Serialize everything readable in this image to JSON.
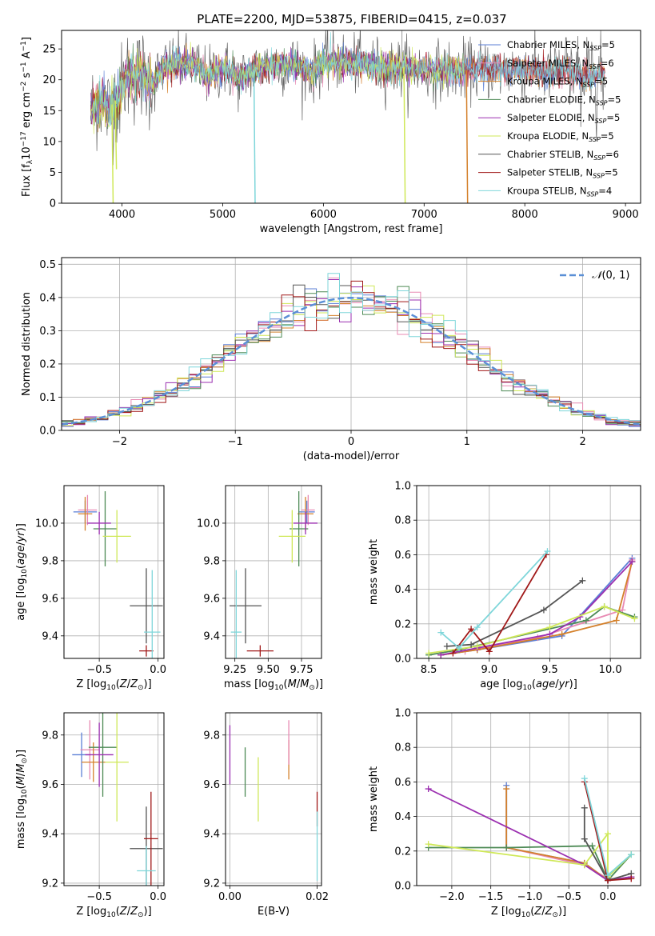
{
  "figure": {
    "title": "PLATE=2200, MJD=53875, FIBERID=0415, z=0.037"
  },
  "colors": {
    "Chabrier MILES": "#5b7fd6",
    "Salpeter MILES": "#e88ab3",
    "Kroupa MILES": "#d4802a",
    "Chabrier ELODIE": "#4d8a55",
    "Salpeter ELODIE": "#9b2fb0",
    "Kroupa ELODIE": "#cfe858",
    "Chabrier STELIB": "#555555",
    "Salpeter STELIB": "#a01818",
    "Kroupa STELIB": "#7fd6da"
  },
  "chart_data": [
    {
      "id": "spectrum",
      "type": "line",
      "title": "PLATE=2200, MJD=53875, FIBERID=0415, z=0.037",
      "xlabel": "wavelength [Angstrom, rest frame]",
      "ylabel": "Flux [f_λ 10^-17 erg cm^-2 s^-1 A^-1]",
      "xlim": [
        3400,
        9150
      ],
      "ylim": [
        0,
        28
      ],
      "xticks": [
        4000,
        5000,
        6000,
        7000,
        8000,
        9000
      ],
      "yticks": [
        0,
        5,
        10,
        15,
        20,
        25
      ],
      "legend_position": "upper right",
      "series": [
        {
          "name": "Chabrier MILES",
          "nssp": "5"
        },
        {
          "name": "Salpeter MILES",
          "nssp": "6"
        },
        {
          "name": "Kroupa MILES",
          "nssp": "5"
        },
        {
          "name": "Chabrier ELODIE",
          "nssp": "5"
        },
        {
          "name": "Salpeter ELODIE",
          "nssp": "5"
        },
        {
          "name": "Kroupa ELODIE",
          "nssp": "5"
        },
        {
          "name": "Chabrier STELIB",
          "nssp": "6"
        },
        {
          "name": "Salpeter STELIB",
          "nssp": "5"
        },
        {
          "name": "Kroupa STELIB",
          "nssp": "4"
        }
      ],
      "continuum": [
        [
          3680,
          14
        ],
        [
          3720,
          16
        ],
        [
          3800,
          17
        ],
        [
          3860,
          15
        ],
        [
          3900,
          16
        ],
        [
          3950,
          17
        ],
        [
          3990,
          18
        ],
        [
          4050,
          21
        ],
        [
          4100,
          20
        ],
        [
          4200,
          21
        ],
        [
          4300,
          19
        ],
        [
          4400,
          22
        ],
        [
          4500,
          22.5
        ],
        [
          4700,
          22.5
        ],
        [
          4861,
          20.5
        ],
        [
          5000,
          22
        ],
        [
          5175,
          20
        ],
        [
          5300,
          21.5
        ],
        [
          5500,
          22.5
        ],
        [
          5700,
          22.5
        ],
        [
          5890,
          21
        ],
        [
          6000,
          23
        ],
        [
          6200,
          23
        ],
        [
          6400,
          22.5
        ],
        [
          6563,
          22
        ],
        [
          6800,
          22
        ],
        [
          7000,
          21.5
        ],
        [
          7200,
          21.5
        ],
        [
          7400,
          21.5
        ],
        [
          7600,
          21.8
        ],
        [
          7800,
          21.5
        ],
        [
          8000,
          21.8
        ],
        [
          8200,
          21
        ],
        [
          8400,
          21.5
        ],
        [
          8542,
          20.5
        ],
        [
          8662,
          20.5
        ],
        [
          8800,
          21
        ]
      ],
      "dips": [
        {
          "x": 3933,
          "y_min": 5.5,
          "series": "Kroupa ELODIE"
        },
        {
          "x": 3900,
          "y_min": 0,
          "series": "Kroupa ELODIE"
        },
        {
          "x": 5310,
          "y_min": 0,
          "series": "Kroupa STELIB"
        },
        {
          "x": 6800,
          "y_min": 0,
          "series": "Kroupa ELODIE"
        },
        {
          "x": 7420,
          "y_min": 0,
          "series": "Kroupa MILES"
        }
      ]
    },
    {
      "id": "residuals",
      "type": "histogram",
      "xlabel": "(data-model)/error",
      "ylabel": "Normed distribution",
      "xlim": [
        -2.5,
        2.5
      ],
      "ylim": [
        0,
        0.52
      ],
      "xticks": [
        -2,
        -1,
        0,
        1,
        2
      ],
      "yticks": [
        0.0,
        0.1,
        0.2,
        0.3,
        0.4,
        0.5
      ],
      "bin_width": 0.1,
      "reference_curve": {
        "name": "N(0,1)",
        "style": "dashed"
      },
      "legend_position": "upper right"
    },
    {
      "id": "age-vs-Z",
      "type": "errorbar",
      "xlabel": "Z [log10(Z/Z⊙)]",
      "ylabel": "age  [log10(age/yr)]",
      "xlim": [
        -0.8,
        0.05
      ],
      "ylim": [
        9.28,
        10.2
      ],
      "xticks": [
        -0.5,
        0.0
      ],
      "yticks": [
        9.4,
        9.6,
        9.8,
        10.0
      ],
      "points": [
        {
          "series": "Chabrier MILES",
          "x": -0.62,
          "y": 10.06,
          "xerr": 0.1,
          "yerr": 0.06
        },
        {
          "series": "Salpeter MILES",
          "x": -0.6,
          "y": 10.07,
          "xerr": 0.08,
          "yerr": 0.08
        },
        {
          "series": "Kroupa MILES",
          "x": -0.62,
          "y": 10.05,
          "xerr": 0.06,
          "yerr": 0.09
        },
        {
          "series": "Chabrier ELODIE",
          "x": -0.45,
          "y": 9.97,
          "xerr": 0.1,
          "yerr": 0.2
        },
        {
          "series": "Salpeter ELODIE",
          "x": -0.5,
          "y": 10.0,
          "xerr": 0.1,
          "yerr": 0.06
        },
        {
          "series": "Kroupa ELODIE",
          "x": -0.35,
          "y": 9.93,
          "xerr": 0.12,
          "yerr": 0.14
        },
        {
          "series": "Chabrier STELIB",
          "x": -0.1,
          "y": 9.56,
          "xerr": 0.14,
          "yerr": 0.2
        },
        {
          "series": "Salpeter STELIB",
          "x": -0.1,
          "y": 9.32,
          "xerr": 0.06,
          "yerr": 0.03
        },
        {
          "series": "Kroupa STELIB",
          "x": -0.05,
          "y": 9.42,
          "xerr": 0.07,
          "yerr": 0.33
        }
      ]
    },
    {
      "id": "age-vs-mass",
      "type": "errorbar",
      "xlabel": "mass [log10(M/M⊙)]",
      "ylabel": "",
      "xlim": [
        9.18,
        9.9
      ],
      "ylim": [
        9.28,
        10.2
      ],
      "xticks": [
        9.25,
        9.5,
        9.75
      ],
      "yticks": [
        9.4,
        9.6,
        9.8,
        10.0
      ],
      "points": [
        {
          "series": "Chabrier MILES",
          "x": 9.79,
          "y": 10.06,
          "xerr": 0.06,
          "yerr": 0.06
        },
        {
          "series": "Salpeter MILES",
          "x": 9.8,
          "y": 10.07,
          "xerr": 0.05,
          "yerr": 0.08
        },
        {
          "series": "Kroupa MILES",
          "x": 9.78,
          "y": 10.05,
          "xerr": 0.06,
          "yerr": 0.09
        },
        {
          "series": "Chabrier ELODIE",
          "x": 9.73,
          "y": 9.97,
          "xerr": 0.07,
          "yerr": 0.2
        },
        {
          "series": "Salpeter ELODIE",
          "x": 9.78,
          "y": 10.0,
          "xerr": 0.09,
          "yerr": 0.06
        },
        {
          "series": "Kroupa ELODIE",
          "x": 9.68,
          "y": 9.93,
          "xerr": 0.1,
          "yerr": 0.14
        },
        {
          "series": "Chabrier STELIB",
          "x": 9.33,
          "y": 9.56,
          "xerr": 0.12,
          "yerr": 0.2
        },
        {
          "series": "Salpeter STELIB",
          "x": 9.44,
          "y": 9.32,
          "xerr": 0.1,
          "yerr": 0.03
        },
        {
          "series": "Kroupa STELIB",
          "x": 9.26,
          "y": 9.42,
          "xerr": 0.04,
          "yerr": 0.33
        }
      ]
    },
    {
      "id": "weight-vs-age",
      "type": "line",
      "xlabel": "age  [log10(age/yr)]",
      "ylabel": "mass weight",
      "xlim": [
        8.4,
        10.25
      ],
      "ylim": [
        0,
        1.0
      ],
      "xticks": [
        8.5,
        9.0,
        9.5,
        10.0
      ],
      "yticks": [
        0.0,
        0.2,
        0.4,
        0.6,
        0.8,
        1.0
      ],
      "series": [
        {
          "name": "Chabrier MILES",
          "x": [
            8.6,
            8.9,
            9.6,
            10.18
          ],
          "y": [
            0.02,
            0.05,
            0.13,
            0.58
          ]
        },
        {
          "name": "Salpeter MILES",
          "x": [
            8.6,
            8.8,
            9.4,
            10.1,
            10.18
          ],
          "y": [
            0.02,
            0.04,
            0.12,
            0.28,
            0.57
          ]
        },
        {
          "name": "Kroupa MILES",
          "x": [
            8.6,
            8.9,
            9.6,
            10.05,
            10.18
          ],
          "y": [
            0.02,
            0.05,
            0.14,
            0.22,
            0.56
          ]
        },
        {
          "name": "Chabrier ELODIE",
          "x": [
            8.5,
            8.75,
            9.8,
            9.95,
            10.2
          ],
          "y": [
            0.02,
            0.05,
            0.22,
            0.3,
            0.24
          ]
        },
        {
          "name": "Salpeter ELODIE",
          "x": [
            8.6,
            8.9,
            9.5,
            9.75,
            10.18
          ],
          "y": [
            0.02,
            0.06,
            0.14,
            0.24,
            0.56
          ]
        },
        {
          "name": "Kroupa ELODIE",
          "x": [
            8.5,
            8.9,
            9.5,
            9.95,
            10.2
          ],
          "y": [
            0.03,
            0.07,
            0.18,
            0.3,
            0.23
          ]
        },
        {
          "name": "Chabrier STELIB",
          "x": [
            8.65,
            8.85,
            9.45,
            9.77
          ],
          "y": [
            0.07,
            0.08,
            0.28,
            0.45
          ]
        },
        {
          "name": "Salpeter STELIB",
          "x": [
            8.7,
            8.85,
            9.0,
            9.47
          ],
          "y": [
            0.03,
            0.17,
            0.04,
            0.6
          ]
        },
        {
          "name": "Kroupa STELIB",
          "x": [
            8.6,
            8.75,
            8.9,
            9.48
          ],
          "y": [
            0.15,
            0.06,
            0.18,
            0.62
          ]
        }
      ]
    },
    {
      "id": "mass-vs-Z",
      "type": "errorbar",
      "xlabel": "Z [log10(Z/Z⊙)]",
      "ylabel": "mass [log10(M/M⊙)]",
      "xlim": [
        -0.8,
        0.05
      ],
      "ylim": [
        9.19,
        9.89
      ],
      "xticks": [
        -0.5,
        0.0
      ],
      "yticks": [
        9.2,
        9.4,
        9.6,
        9.8
      ],
      "points": [
        {
          "series": "Chabrier MILES",
          "x": -0.65,
          "y": 9.72,
          "xerr": 0.08,
          "yerr": 0.09
        },
        {
          "series": "Salpeter MILES",
          "x": -0.58,
          "y": 9.74,
          "xerr": 0.08,
          "yerr": 0.12
        },
        {
          "series": "Kroupa MILES",
          "x": -0.55,
          "y": 9.69,
          "xerr": 0.1,
          "yerr": 0.08
        },
        {
          "series": "Chabrier ELODIE",
          "x": -0.47,
          "y": 9.75,
          "xerr": 0.12,
          "yerr": 0.2
        },
        {
          "series": "Salpeter ELODIE",
          "x": -0.5,
          "y": 9.72,
          "xerr": 0.12,
          "yerr": 0.13
        },
        {
          "series": "Kroupa ELODIE",
          "x": -0.35,
          "y": 9.69,
          "xerr": 0.1,
          "yerr": 0.24
        },
        {
          "series": "Chabrier STELIB",
          "x": -0.1,
          "y": 9.34,
          "xerr": 0.14,
          "yerr": 0.17
        },
        {
          "series": "Salpeter STELIB",
          "x": -0.06,
          "y": 9.38,
          "xerr": 0.06,
          "yerr": 0.19
        },
        {
          "series": "Kroupa STELIB",
          "x": -0.1,
          "y": 9.25,
          "xerr": 0.08,
          "yerr": 0.1
        }
      ]
    },
    {
      "id": "mass-vs-EBV",
      "type": "errorbar",
      "xlabel": "E(B-V)",
      "ylabel": "",
      "xlim": [
        -0.001,
        0.021
      ],
      "ylim": [
        9.19,
        9.89
      ],
      "xticks": [
        0.0,
        0.02
      ],
      "yticks": [
        9.2,
        9.4,
        9.6,
        9.8
      ],
      "points": [
        {
          "series": "Salpeter ELODIE",
          "x": 0.0,
          "y": 9.72,
          "yerr": 0.12
        },
        {
          "series": "Chabrier ELODIE",
          "x": 0.0035,
          "y": 9.65,
          "yerr": 0.1
        },
        {
          "series": "Kroupa ELODIE",
          "x": 0.0065,
          "y": 9.58,
          "yerr": 0.13
        },
        {
          "series": "Kroupa MILES",
          "x": 0.0135,
          "y": 9.7,
          "yerr": 0.08
        },
        {
          "series": "Salpeter MILES",
          "x": 0.0135,
          "y": 9.77,
          "yerr": 0.09
        },
        {
          "series": "Salpeter STELIB",
          "x": 0.02,
          "y": 9.5,
          "yerr": 0.07
        },
        {
          "series": "Kroupa STELIB",
          "x": 0.02,
          "y": 9.35,
          "yerr": 0.14
        }
      ]
    },
    {
      "id": "weight-vs-Z",
      "type": "line",
      "xlabel": "Z [log10(Z/Z⊙)]",
      "ylabel": "mass weight",
      "xlim": [
        -2.45,
        0.42
      ],
      "ylim": [
        0,
        1.0
      ],
      "xticks": [
        -2.0,
        -1.5,
        -1.0,
        -0.5,
        0.0
      ],
      "yticks": [
        0.0,
        0.2,
        0.4,
        0.6,
        0.8,
        1.0
      ],
      "series": [
        {
          "name": "Chabrier MILES",
          "x": [
            -1.3,
            -1.3,
            -0.3,
            0.0,
            0.3
          ],
          "y": [
            0.58,
            0.22,
            0.13,
            0.03,
            0.05
          ]
        },
        {
          "name": "Salpeter MILES",
          "x": [
            -1.3,
            -0.3,
            0.0,
            0.3
          ],
          "y": [
            0.22,
            0.12,
            0.04,
            0.04
          ]
        },
        {
          "name": "Kroupa MILES",
          "x": [
            -1.3,
            -1.3,
            -0.3,
            0.0,
            0.3
          ],
          "y": [
            0.56,
            0.22,
            0.13,
            0.03,
            0.05
          ]
        },
        {
          "name": "Chabrier ELODIE",
          "x": [
            -2.3,
            -1.3,
            -0.2,
            0.0,
            0.3
          ],
          "y": [
            0.22,
            0.22,
            0.23,
            0.03,
            0.18
          ]
        },
        {
          "name": "Salpeter ELODIE",
          "x": [
            -2.3,
            -0.3,
            0.0,
            0.3
          ],
          "y": [
            0.56,
            0.12,
            0.03,
            0.05
          ]
        },
        {
          "name": "Kroupa ELODIE",
          "x": [
            -2.3,
            -0.3,
            0.0,
            0.0,
            0.3
          ],
          "y": [
            0.24,
            0.12,
            0.3,
            0.05,
            0.18
          ]
        },
        {
          "name": "Chabrier STELIB",
          "x": [
            -0.3,
            -0.3,
            0.0,
            0.3
          ],
          "y": [
            0.45,
            0.27,
            0.03,
            0.07
          ]
        },
        {
          "name": "Salpeter STELIB",
          "x": [
            -0.3,
            0.0,
            0.3
          ],
          "y": [
            0.6,
            0.03,
            0.04
          ]
        },
        {
          "name": "Kroupa STELIB",
          "x": [
            -0.3,
            0.0,
            0.3
          ],
          "y": [
            0.62,
            0.06,
            0.18
          ]
        }
      ]
    }
  ]
}
